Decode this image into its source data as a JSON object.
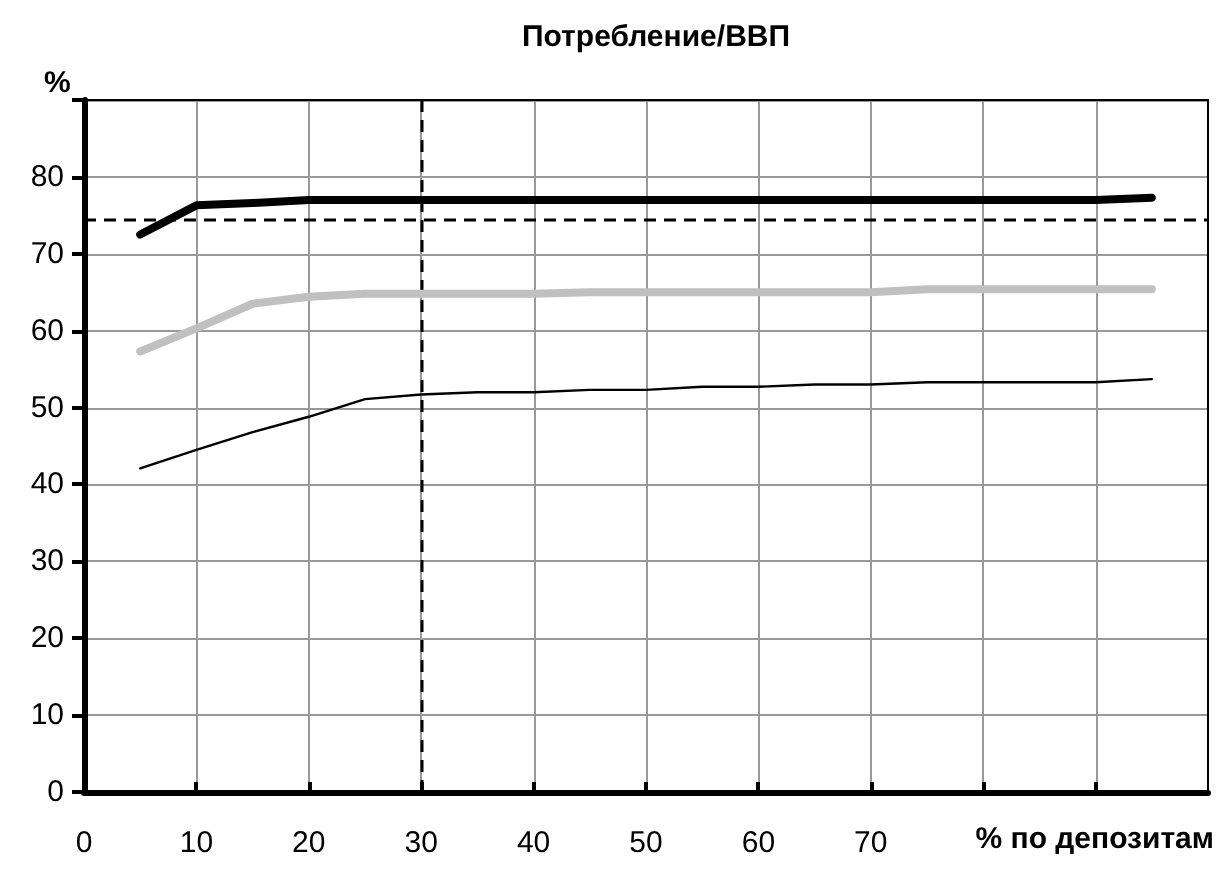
{
  "chart_data": {
    "type": "line",
    "title": "Потребление/ВВП",
    "xlabel": "% по депозитам",
    "ylabel": "%",
    "x": [
      5,
      10,
      15,
      20,
      25,
      30,
      35,
      40,
      45,
      50,
      55,
      60,
      65,
      70,
      75,
      80,
      85,
      90,
      95
    ],
    "series": [
      {
        "color": "#000000",
        "values": [
          72.5,
          76.3,
          76.6,
          77,
          77,
          77,
          77,
          77,
          77,
          77,
          77,
          77,
          77,
          77,
          77,
          77,
          77,
          77,
          77.3
        ]
      },
      {
        "color": "#c0c0c0",
        "values": [
          57.3,
          60.3,
          63.5,
          64.4,
          64.8,
          64.8,
          64.8,
          64.8,
          65,
          65,
          65,
          65,
          65,
          65,
          65.4,
          65.4,
          65.4,
          65.4,
          65.4
        ]
      },
      {
        "color": "#000000",
        "values": [
          42.1,
          44.5,
          46.8,
          48.8,
          51.1,
          51.7,
          52,
          52,
          52.3,
          52.3,
          52.7,
          52.7,
          53,
          53,
          53.3,
          53.3,
          53.3,
          53.3,
          53.7
        ]
      }
    ],
    "xlim": [
      0,
      100
    ],
    "xticks": [
      0,
      10,
      20,
      30,
      40,
      50,
      60,
      70,
      {
        "value": 80,
        "label": null
      },
      {
        "value": 90,
        "label": null
      }
    ],
    "ylim": [
      0,
      90
    ],
    "yticks": [
      0,
      10,
      20,
      30,
      40,
      50,
      60,
      70,
      80,
      {
        "value": 90,
        "label": null
      }
    ],
    "ref_lines": [
      {
        "axis": "y",
        "value": 74.4,
        "color": "#000000",
        "line_style": "dashed"
      },
      {
        "axis": "x",
        "value": 30,
        "color": "#000000",
        "line_style": "dashed"
      }
    ],
    "grid": true,
    "marker": "none",
    "line_style": "solid"
  }
}
